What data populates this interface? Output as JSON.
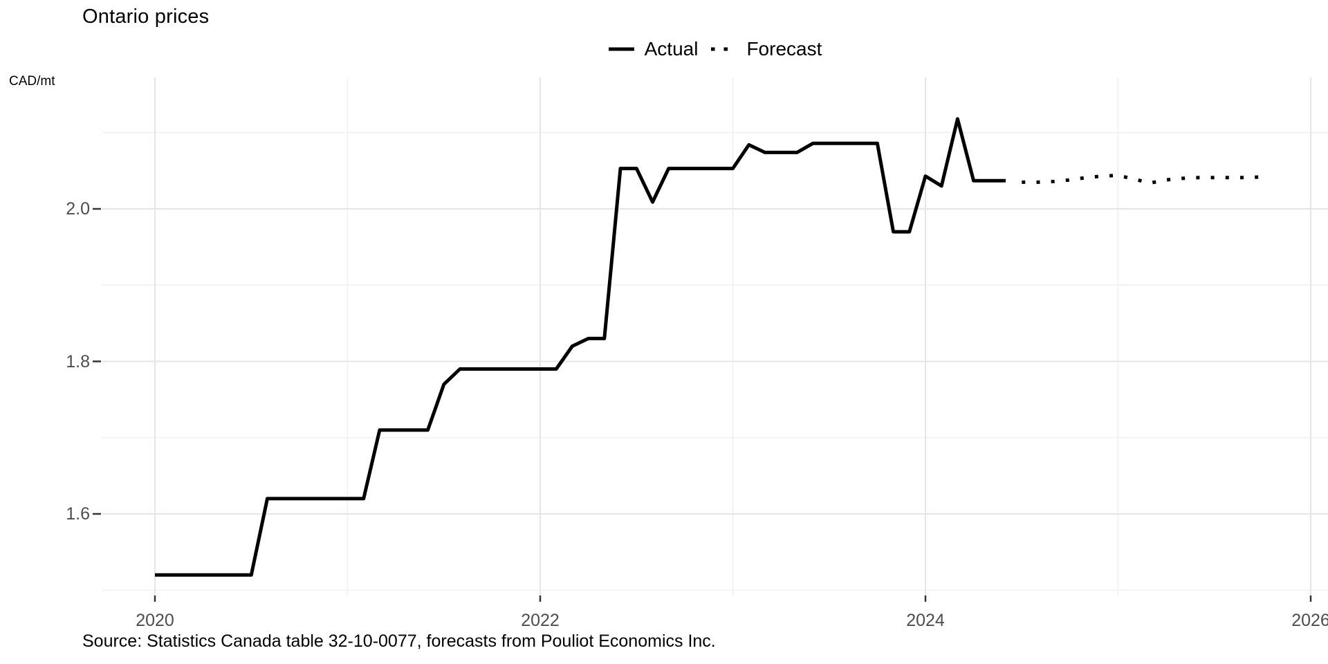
{
  "title": "Ontario prices",
  "y_axis_unit_label": "CAD/mt",
  "legend": {
    "actual_label": "Actual",
    "forecast_label": "Forecast"
  },
  "caption": "Source: Statistics Canada table 32-10-0077, forecasts from Pouliot Economics Inc.",
  "colors": {
    "line": "#000000",
    "grid_major": "#e5e5e5",
    "grid_minor": "#f0f0f0",
    "tick_mark": "#333333",
    "tick_label": "#4d4d4d",
    "background": "#ffffff"
  },
  "chart_data": {
    "type": "line",
    "title": "Ontario prices",
    "xlabel": "",
    "ylabel": "CAD/mt",
    "grid": true,
    "legend_position": "top-center",
    "xlim": [
      2019.71,
      2026.09
    ],
    "ylim": [
      1.49,
      2.17
    ],
    "x_ticks": [
      2020,
      2022,
      2024,
      2026
    ],
    "x_tick_labels": [
      "2020",
      "2022",
      "2024",
      "2026"
    ],
    "x_minor_ticks": [
      2021,
      2023,
      2025
    ],
    "y_ticks": [
      1.6,
      1.8,
      2.0
    ],
    "y_tick_labels": [
      "1.6",
      "1.8",
      "2.0"
    ],
    "y_minor_ticks": [
      1.5,
      1.7,
      1.9,
      2.1
    ],
    "series": [
      {
        "name": "Actual",
        "linetype": "solid",
        "freq": "monthly",
        "start": "2020-01",
        "values": [
          1.52,
          1.52,
          1.52,
          1.52,
          1.52,
          1.52,
          1.52,
          1.62,
          1.62,
          1.62,
          1.62,
          1.62,
          1.62,
          1.62,
          1.71,
          1.71,
          1.71,
          1.71,
          1.77,
          1.79,
          1.79,
          1.79,
          1.79,
          1.79,
          1.79,
          1.79,
          1.82,
          1.83,
          1.83,
          2.053,
          2.053,
          2.009,
          2.053,
          2.053,
          2.053,
          2.053,
          2.053,
          2.084,
          2.074,
          2.074,
          2.074,
          2.086,
          2.086,
          2.086,
          2.086,
          2.086,
          1.97,
          1.97,
          2.043,
          2.03,
          2.118,
          2.037,
          2.037,
          2.037
        ]
      },
      {
        "name": "Forecast",
        "linetype": "dotted",
        "freq": "monthly",
        "start": "2024-07",
        "values": [
          2.035,
          2.035,
          2.036,
          2.038,
          2.041,
          2.043,
          2.044,
          2.039,
          2.034,
          2.038,
          2.04,
          2.041,
          2.041,
          2.041,
          2.041,
          2.042
        ]
      }
    ]
  }
}
